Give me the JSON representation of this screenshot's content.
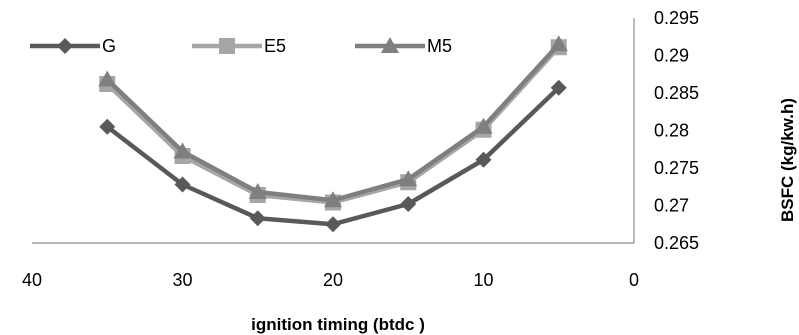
{
  "chart_data": {
    "type": "line",
    "title": "",
    "xlabel": "ignition timing (btdc  )",
    "ylabel": "BSFC (kg/kw.h)",
    "x": [
      35,
      30,
      25,
      20,
      15,
      10,
      5
    ],
    "xlim": [
      40,
      0
    ],
    "x_ticks": [
      "40",
      "30",
      "20",
      "10",
      "0"
    ],
    "x_tick_values": [
      40,
      30,
      20,
      10,
      0
    ],
    "ylim": [
      0.265,
      0.295
    ],
    "y_ticks": [
      "0.265",
      "0.27",
      "0.275",
      "0.28",
      "0.285",
      "0.29",
      "0.295"
    ],
    "y_tick_values": [
      0.265,
      0.27,
      0.275,
      0.28,
      0.285,
      0.29,
      0.295
    ],
    "y_axis_side": "right",
    "grid": false,
    "legend_position": "top",
    "series": [
      {
        "name": "G",
        "marker": "diamond",
        "color": "#595959",
        "values": [
          0.2805,
          0.2728,
          0.2683,
          0.2675,
          0.2702,
          0.2761,
          0.2857
        ]
      },
      {
        "name": "E5",
        "marker": "square",
        "color": "#a6a6a6",
        "values": [
          0.2862,
          0.2766,
          0.2714,
          0.2704,
          0.2731,
          0.2801,
          0.2911
        ]
      },
      {
        "name": "M5",
        "marker": "triangle",
        "color": "#7f7f7f",
        "values": [
          0.2868,
          0.2772,
          0.2718,
          0.2707,
          0.2735,
          0.2805,
          0.2915
        ]
      }
    ]
  }
}
